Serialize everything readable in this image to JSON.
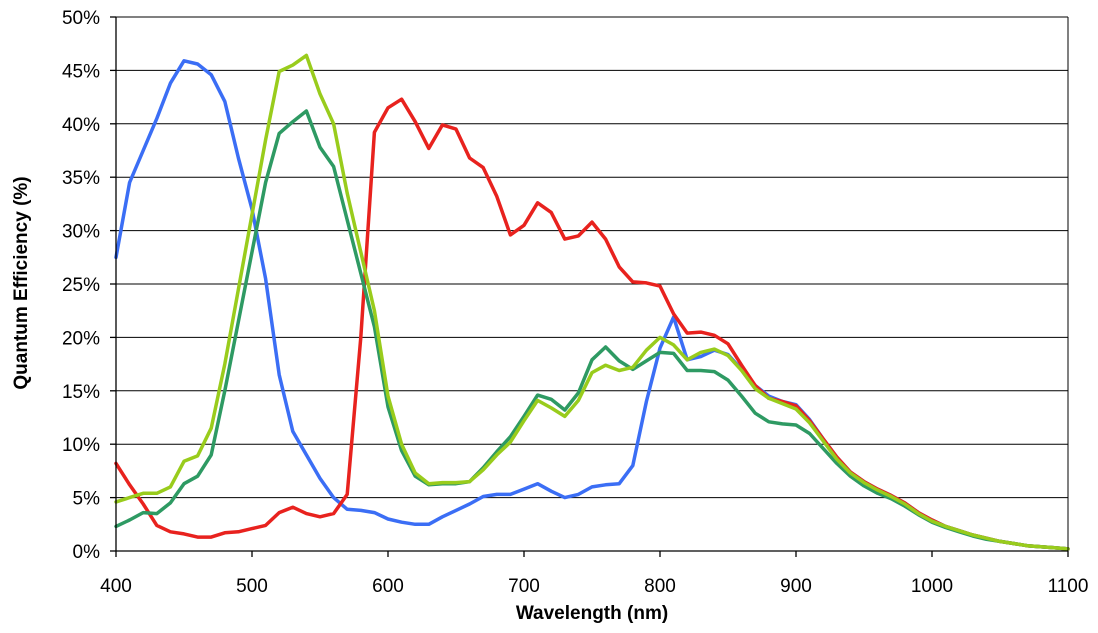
{
  "chart_data": {
    "type": "line",
    "title": "",
    "xlabel": "Wavelength (nm)",
    "ylabel": "Quantum Efficiency (%)",
    "xlim": [
      400,
      1100
    ],
    "ylim": [
      0,
      50
    ],
    "x_ticks": [
      400,
      500,
      600,
      700,
      800,
      900,
      1000,
      1100
    ],
    "x_tick_labels": [
      "400",
      "500",
      "600",
      "700",
      "800",
      "900",
      "1000",
      "1100"
    ],
    "y_ticks": [
      0,
      5,
      10,
      15,
      20,
      25,
      30,
      35,
      40,
      45,
      50
    ],
    "y_tick_labels": [
      "0%",
      "5%",
      "10%",
      "15%",
      "20%",
      "25%",
      "30%",
      "35%",
      "40%",
      "45%",
      "50%"
    ],
    "grid": "horizontal",
    "legend": "none",
    "x": [
      400,
      410,
      420,
      430,
      440,
      450,
      460,
      470,
      480,
      490,
      500,
      510,
      520,
      530,
      540,
      550,
      560,
      570,
      580,
      590,
      600,
      610,
      620,
      630,
      640,
      650,
      660,
      670,
      680,
      690,
      700,
      710,
      720,
      730,
      740,
      750,
      760,
      770,
      780,
      790,
      800,
      810,
      820,
      830,
      840,
      850,
      860,
      870,
      880,
      890,
      900,
      910,
      920,
      930,
      940,
      950,
      960,
      970,
      980,
      990,
      1000,
      1010,
      1020,
      1030,
      1040,
      1050,
      1060,
      1070,
      1080,
      1090,
      1100
    ],
    "series": [
      {
        "color": "#3b6ef5",
        "values": [
          27.5,
          34.5,
          37.5,
          40.5,
          43.8,
          45.9,
          45.6,
          44.6,
          42.1,
          36.8,
          32.0,
          25.5,
          16.5,
          11.2,
          9.0,
          6.8,
          5.0,
          3.9,
          3.8,
          3.6,
          3.0,
          2.7,
          2.5,
          2.5,
          3.2,
          3.8,
          4.4,
          5.1,
          5.3,
          5.3,
          5.8,
          6.3,
          5.6,
          5.0,
          5.3,
          6.0,
          6.2,
          6.3,
          8.0,
          14.0,
          19.0,
          21.9,
          17.9,
          18.2,
          18.8,
          18.4,
          17.0,
          15.5,
          14.5,
          14.0,
          13.7,
          12.3,
          10.5,
          8.8,
          7.4,
          6.5,
          5.8,
          5.2,
          4.5,
          3.6,
          2.9,
          2.3,
          1.9,
          1.5,
          1.2,
          0.9,
          0.7,
          0.5,
          0.4,
          0.3,
          0.2
        ]
      },
      {
        "color": "#e8221e",
        "values": [
          8.2,
          6.2,
          4.4,
          2.4,
          1.8,
          1.6,
          1.3,
          1.3,
          1.7,
          1.8,
          2.1,
          2.4,
          3.6,
          4.1,
          3.5,
          3.2,
          3.5,
          5.3,
          20.0,
          39.2,
          41.5,
          42.3,
          40.2,
          37.7,
          39.9,
          39.5,
          36.8,
          35.9,
          33.2,
          29.6,
          30.5,
          32.6,
          31.7,
          29.2,
          29.5,
          30.8,
          29.2,
          26.6,
          25.2,
          25.1,
          24.8,
          22.2,
          20.4,
          20.5,
          20.2,
          19.4,
          17.4,
          15.5,
          14.3,
          14.0,
          13.6,
          12.2,
          10.5,
          8.8,
          7.4,
          6.5,
          5.8,
          5.2,
          4.5,
          3.6,
          2.9,
          2.3,
          1.9,
          1.5,
          1.2,
          0.9,
          0.7,
          0.5,
          0.4,
          0.3,
          0.2
        ]
      },
      {
        "color": "#2e9a63",
        "values": [
          2.3,
          2.9,
          3.6,
          3.5,
          4.5,
          6.3,
          7.0,
          9.0,
          15.0,
          21.5,
          28.0,
          34.5,
          39.1,
          40.2,
          41.2,
          37.8,
          36.0,
          31.0,
          26.0,
          21.0,
          13.5,
          9.4,
          7.0,
          6.2,
          6.3,
          6.3,
          6.5,
          7.8,
          9.3,
          10.7,
          12.6,
          14.6,
          14.2,
          13.2,
          14.8,
          17.9,
          19.1,
          17.8,
          17.0,
          17.8,
          18.6,
          18.5,
          16.9,
          16.9,
          16.8,
          16.0,
          14.5,
          12.9,
          12.1,
          11.9,
          11.8,
          11.0,
          9.6,
          8.2,
          7.0,
          6.1,
          5.4,
          4.9,
          4.2,
          3.4,
          2.7,
          2.2,
          1.8,
          1.4,
          1.1,
          0.9,
          0.7,
          0.5,
          0.4,
          0.3,
          0.2
        ]
      },
      {
        "color": "#99cc1c",
        "values": [
          4.6,
          5.0,
          5.4,
          5.4,
          6.0,
          8.4,
          8.9,
          11.5,
          17.5,
          24.5,
          31.5,
          38.5,
          44.9,
          45.5,
          46.4,
          42.8,
          40.0,
          33.5,
          28.0,
          22.5,
          14.5,
          10.0,
          7.3,
          6.3,
          6.4,
          6.4,
          6.5,
          7.6,
          9.0,
          10.2,
          12.2,
          14.1,
          13.4,
          12.6,
          14.1,
          16.7,
          17.4,
          16.9,
          17.2,
          18.8,
          20.0,
          19.3,
          17.9,
          18.6,
          18.9,
          18.3,
          16.9,
          15.2,
          14.3,
          13.8,
          13.3,
          12.0,
          10.3,
          8.6,
          7.3,
          6.4,
          5.7,
          5.1,
          4.4,
          3.5,
          2.8,
          2.3,
          1.9,
          1.5,
          1.2,
          0.9,
          0.7,
          0.5,
          0.4,
          0.3,
          0.2
        ]
      }
    ]
  }
}
